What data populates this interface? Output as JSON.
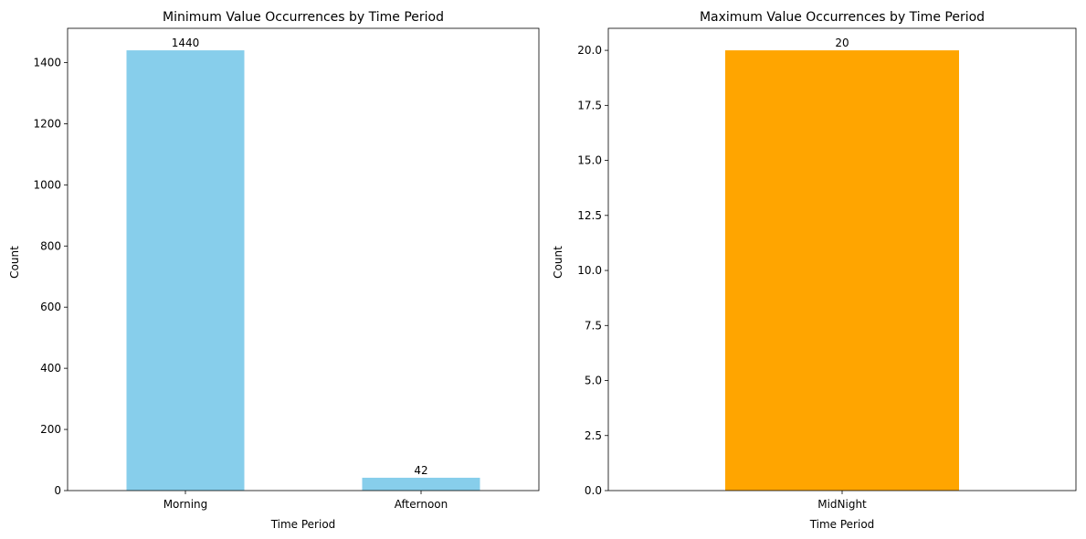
{
  "chart_data": [
    {
      "type": "bar",
      "title": "Minimum Value Occurrences by Time Period",
      "xlabel": "Time Period",
      "ylabel": "Count",
      "categories": [
        "Morning",
        "Afternoon"
      ],
      "values": [
        1440,
        42
      ],
      "data_labels": [
        "1440",
        "42"
      ],
      "ylim": [
        0,
        1512
      ],
      "yticks": [
        0,
        200,
        400,
        600,
        800,
        1000,
        1200,
        1400
      ],
      "ytick_labels": [
        "0",
        "200",
        "400",
        "600",
        "800",
        "1000",
        "1200",
        "1400"
      ],
      "color": "#87ceeb",
      "grid": false,
      "legend": false
    },
    {
      "type": "bar",
      "title": "Maximum Value Occurrences by Time Period",
      "xlabel": "Time Period",
      "ylabel": "Count",
      "categories": [
        "MidNight"
      ],
      "values": [
        20
      ],
      "data_labels": [
        "20"
      ],
      "ylim": [
        0,
        21
      ],
      "yticks": [
        0,
        2.5,
        5,
        7.5,
        10,
        12.5,
        15,
        17.5,
        20
      ],
      "ytick_labels": [
        "0.0",
        "2.5",
        "5.0",
        "7.5",
        "10.0",
        "12.5",
        "15.0",
        "17.5",
        "20.0"
      ],
      "color": "#ffa500",
      "grid": false,
      "legend": false
    }
  ]
}
